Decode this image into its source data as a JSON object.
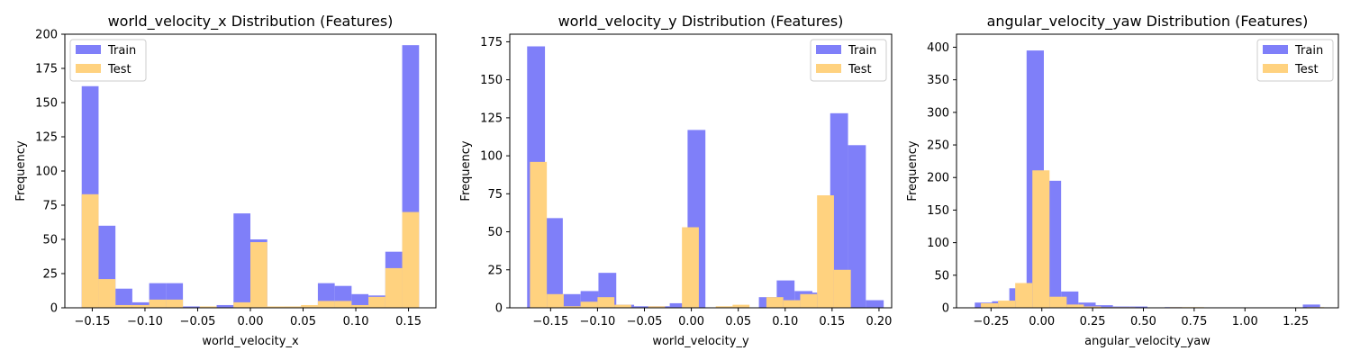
{
  "colors": {
    "train": "#7f7ff9",
    "test": "#ffd27f",
    "overlap": "#bf8a81",
    "axis": "#000000",
    "legend_border": "#cccccc"
  },
  "legend": {
    "train": "Train",
    "test": "Test"
  },
  "chart_data": [
    {
      "type": "histogram",
      "title": "world_velocity_x Distribution (Features)",
      "xlabel": "world_velocity_x",
      "ylabel": "Frequency",
      "xlim": [
        -0.176,
        0.176
      ],
      "ylim": [
        0,
        200
      ],
      "xticks": [
        -0.15,
        -0.1,
        -0.05,
        0.0,
        0.05,
        0.1,
        0.15
      ],
      "xticklabels": [
        "−0.15",
        "−0.10",
        "−0.05",
        "0.00",
        "0.05",
        "0.10",
        "0.15"
      ],
      "yticks": [
        0,
        25,
        50,
        75,
        100,
        125,
        150,
        175,
        200
      ],
      "yticklabels": [
        "0",
        "25",
        "50",
        "75",
        "100",
        "125",
        "150",
        "175",
        "200"
      ],
      "legend_position": "upper-left",
      "series": [
        {
          "name": "Train",
          "bins": [
            -0.16,
            -0.144,
            -0.128,
            -0.112,
            -0.096,
            -0.08,
            -0.064,
            -0.048,
            -0.032,
            -0.016,
            0.0,
            0.016,
            0.032,
            0.048,
            0.064,
            0.08,
            0.096,
            0.112,
            0.128,
            0.144,
            0.16
          ],
          "counts": [
            162,
            60,
            14,
            4,
            18,
            18,
            1,
            0,
            2,
            69,
            50,
            0,
            1,
            1,
            18,
            16,
            10,
            9,
            41,
            192
          ]
        },
        {
          "name": "Test",
          "bins": [
            -0.16,
            -0.144,
            -0.128,
            -0.112,
            -0.096,
            -0.08,
            -0.064,
            -0.048,
            -0.032,
            -0.016,
            0.0,
            0.016,
            0.032,
            0.048,
            0.064,
            0.08,
            0.096,
            0.112,
            0.128,
            0.144,
            0.16
          ],
          "counts": [
            83,
            21,
            2,
            2,
            6,
            6,
            0,
            1,
            0,
            4,
            48,
            1,
            1,
            2,
            5,
            5,
            2,
            8,
            29,
            70
          ]
        }
      ]
    },
    {
      "type": "histogram",
      "title": "world_velocity_y Distribution (Features)",
      "xlabel": "world_velocity_y",
      "ylabel": "Frequency",
      "xlim": [
        -0.1935,
        0.2135
      ],
      "ylim": [
        0,
        180
      ],
      "xticks": [
        -0.15,
        -0.1,
        -0.05,
        0.0,
        0.05,
        0.1,
        0.15,
        0.2
      ],
      "xticklabels": [
        "−0.15",
        "−0.10",
        "−0.05",
        "0.00",
        "0.05",
        "0.10",
        "0.15",
        "0.20"
      ],
      "yticks": [
        0,
        25,
        50,
        75,
        100,
        125,
        150,
        175
      ],
      "yticklabels": [
        "0",
        "25",
        "50",
        "75",
        "100",
        "125",
        "150",
        "175"
      ],
      "legend_position": "upper-right",
      "series": [
        {
          "name": "Train",
          "bins": [
            -0.175,
            -0.156,
            -0.137,
            -0.118,
            -0.099,
            -0.08,
            -0.061,
            -0.042,
            -0.023,
            -0.004,
            0.015,
            0.034,
            0.053,
            0.072,
            0.091,
            0.11,
            0.129,
            0.148,
            0.167,
            0.186,
            0.205
          ],
          "counts": [
            172,
            59,
            9,
            11,
            23,
            2,
            1,
            1,
            3,
            117,
            0,
            0,
            0,
            7,
            18,
            11,
            10,
            128,
            107,
            5
          ]
        },
        {
          "name": "Test",
          "bins": [
            -0.172,
            -0.154,
            -0.136,
            -0.118,
            -0.1,
            -0.082,
            -0.064,
            -0.046,
            -0.028,
            -0.01,
            0.008,
            0.026,
            0.044,
            0.062,
            0.08,
            0.098,
            0.116,
            0.134,
            0.152,
            0.17,
            0.188
          ],
          "counts": [
            96,
            9,
            1,
            4,
            7,
            2,
            0,
            1,
            0,
            53,
            0,
            1,
            2,
            0,
            7,
            5,
            9,
            74,
            25,
            0
          ]
        }
      ]
    },
    {
      "type": "histogram",
      "title": "angular_velocity_yaw Distribution (Features)",
      "xlabel": "angular_velocity_yaw",
      "ylabel": "Frequency",
      "xlim": [
        -0.42,
        1.46
      ],
      "ylim": [
        0,
        420
      ],
      "xticks": [
        -0.25,
        0.0,
        0.25,
        0.5,
        0.75,
        1.0,
        1.25
      ],
      "xticklabels": [
        "−0.25",
        "0.00",
        "0.25",
        "0.50",
        "0.75",
        "1.00",
        "1.25"
      ],
      "yticks": [
        0,
        50,
        100,
        150,
        200,
        250,
        300,
        350,
        400
      ],
      "yticklabels": [
        "0",
        "50",
        "100",
        "150",
        "200",
        "250",
        "300",
        "350",
        "400"
      ],
      "legend_position": "upper-right",
      "series": [
        {
          "name": "Train",
          "bins": [
            -0.33,
            -0.245,
            -0.16,
            -0.075,
            0.01,
            0.095,
            0.18,
            0.265,
            0.35,
            0.435,
            0.52,
            0.605,
            0.69,
            0.775,
            0.86,
            0.945,
            1.03,
            1.115,
            1.2,
            1.285,
            1.37
          ],
          "counts": [
            8,
            10,
            30,
            395,
            195,
            25,
            8,
            4,
            2,
            2,
            0,
            1,
            0,
            0,
            0,
            0,
            0,
            0,
            0,
            5
          ]
        },
        {
          "name": "Test",
          "bins": [
            -0.3,
            -0.2155,
            -0.131,
            -0.0465,
            0.038,
            0.1225,
            0.207,
            0.2915,
            0.376,
            0.4605,
            0.545,
            0.6295,
            0.714,
            0.7985,
            0.883,
            0.9675,
            1.052,
            1.1365,
            1.221,
            1.3055,
            1.39
          ],
          "counts": [
            7,
            11,
            38,
            211,
            17,
            5,
            2,
            1,
            1,
            0,
            0,
            1,
            1,
            0,
            0,
            0,
            0,
            0,
            0,
            1
          ]
        }
      ]
    }
  ]
}
